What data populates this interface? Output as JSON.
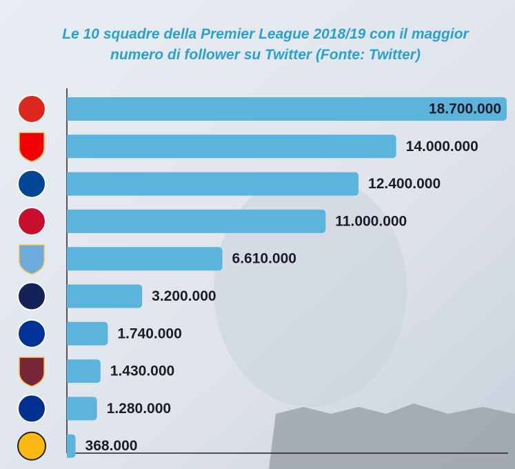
{
  "chart_data": {
    "type": "bar",
    "orientation": "horizontal",
    "title": "Le 10 squadre della Premier League 2018/19 con il maggior",
    "subtitle": "numero di follower su Twitter (Fonte: Twitter)",
    "color": "#5ab4dc",
    "values": [
      18700000,
      14000000,
      12400000,
      11000000,
      6610000,
      3200000,
      1740000,
      1430000,
      1280000,
      368000
    ],
    "value_labels": [
      "18.700.000",
      "14.000.000",
      "12.400.000",
      "11.000.000",
      "6.610.000",
      "3.200.000",
      "1.740.000",
      "1.430.000",
      "1.280.000",
      "368.000"
    ]
  }
}
